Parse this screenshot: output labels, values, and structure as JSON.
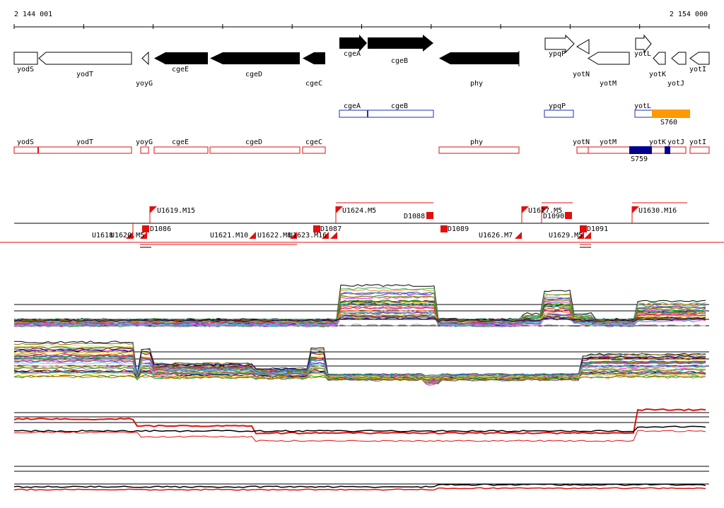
{
  "ruler": {
    "start_label": "2 144 001",
    "end_label": "2 154 000"
  },
  "colors": {
    "gene_outline": "#000000",
    "gene_fill": "#000000",
    "blue_track": "#1f2fbf",
    "red_track": "#e01010",
    "navy_block": "#000090",
    "orange_block": "#ff9900",
    "red_hline": "#e01010"
  },
  "genes_open": [
    {
      "label": "yodS"
    },
    {
      "label": "yodT"
    },
    {
      "label": "yoyG"
    },
    {
      "label": "ypqP"
    },
    {
      "label": "yotN"
    },
    {
      "label": "yotM"
    },
    {
      "label": "yotL"
    },
    {
      "label": "yotK"
    },
    {
      "label": "yotJ"
    },
    {
      "label": "yotI"
    }
  ],
  "genes_filled": [
    {
      "label": "cgeE"
    },
    {
      "label": "cgeD"
    },
    {
      "label": "cgeC"
    },
    {
      "label": "cgeA"
    },
    {
      "label": "cgeB"
    },
    {
      "label": "phy"
    }
  ],
  "blue_track": {
    "labels": [
      "cgeA",
      "cgeB",
      "ypqP",
      "yotL"
    ],
    "block_label": "S760"
  },
  "red_track": {
    "labels": [
      "yodS",
      "yodT",
      "yoyG",
      "cgeE",
      "cgeD",
      "cgeC",
      "phy",
      "yotN",
      "yotM",
      "yotK",
      "yotJ",
      "yotI"
    ],
    "block_label": "S759"
  },
  "features_upper": [
    "U1619.M15",
    "U1624.M5",
    "D1088",
    "U1627.M5",
    "D1090",
    "U1630.M16"
  ],
  "features_lower": [
    "U1618",
    "U1620.M5",
    "D1086",
    "U1621.M10",
    "U1622.M8",
    "U1623.M16",
    "D1087",
    "D1089",
    "U1626.M7",
    "U1629.M5",
    "D1091"
  ]
}
